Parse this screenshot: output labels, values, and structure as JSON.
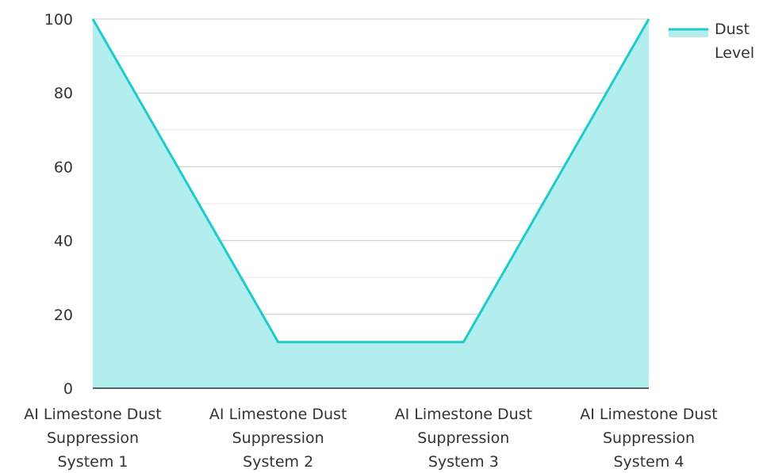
{
  "chart_data": {
    "type": "area",
    "categories": [
      "AI Limestone Dust Suppression System 1",
      "AI Limestone Dust Suppression System 2",
      "AI Limestone Dust Suppression System 3",
      "AI Limestone Dust Suppression System 4"
    ],
    "category_lines": [
      [
        "AI Limestone Dust",
        "Suppression",
        "System 1"
      ],
      [
        "AI Limestone Dust",
        "Suppression",
        "System 2"
      ],
      [
        "AI Limestone Dust",
        "Suppression",
        "System 3"
      ],
      [
        "AI Limestone Dust",
        "Suppression",
        "System 4"
      ]
    ],
    "series": [
      {
        "name": "Dust Level",
        "name_lines": [
          "Dust",
          "Level"
        ],
        "values": [
          100,
          12.5,
          12.5,
          100
        ]
      }
    ],
    "ylim": [
      0,
      100
    ],
    "yticks": [
      0,
      20,
      40,
      60,
      80,
      100
    ],
    "title": "",
    "xlabel": "",
    "ylabel": "",
    "grid": true,
    "legend_position": "top-right",
    "colors": {
      "line": "#1ecbcb",
      "fill": "#b3eeee",
      "grid_major": "#cccccc",
      "grid_minor": "#e6e6e6",
      "axis": "#333333",
      "text": "#333333"
    }
  }
}
